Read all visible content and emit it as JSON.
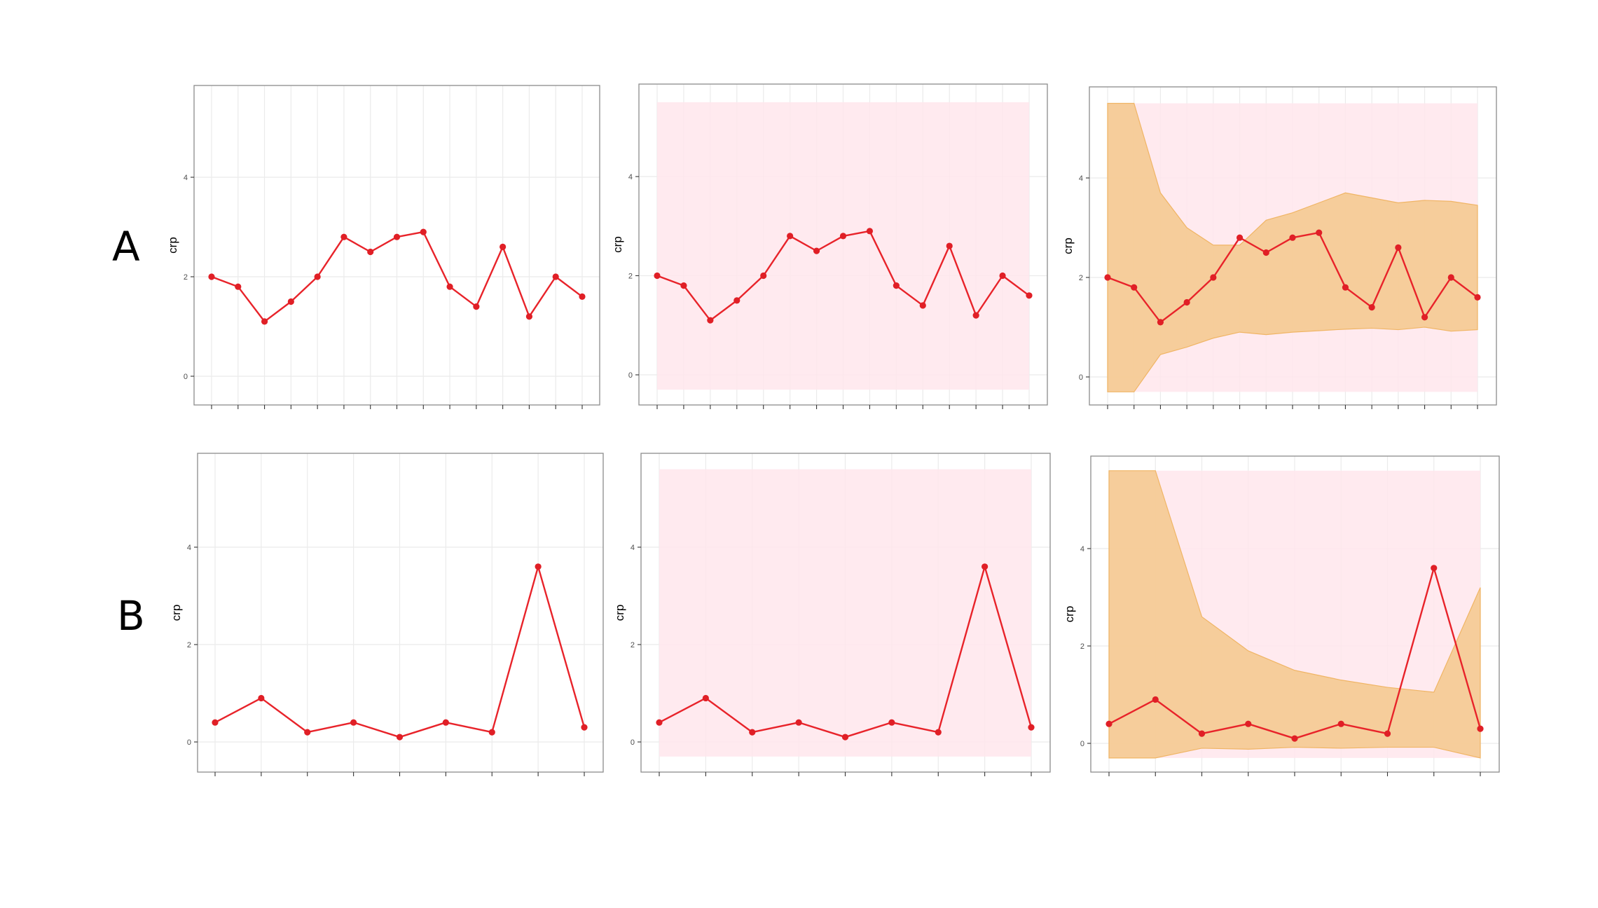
{
  "row_labels": [
    "A",
    "B"
  ],
  "colors": {
    "line": "#e8232a",
    "point": "#e01f26",
    "reference_band": "#ffe6ec",
    "prediction_band": "#f5c88c",
    "prediction_band_edge": "#f0b565",
    "grid": "#ebebeb",
    "frame": "#8c8c8c"
  },
  "chart_data": [
    {
      "type": "line",
      "row": "A",
      "panel": 1,
      "ylabel": "crp",
      "ylim": [
        -0.6,
        5.6
      ],
      "yticks": [
        "0",
        "2",
        "4"
      ],
      "grid": true,
      "x_ticks_labeled": false,
      "x": [
        1,
        2,
        3,
        4,
        5,
        6,
        7,
        8,
        9,
        10,
        11,
        12,
        13,
        14,
        15
      ],
      "values": [
        2.0,
        1.8,
        1.1,
        1.5,
        2.0,
        2.8,
        2.5,
        2.8,
        2.9,
        1.8,
        1.4,
        2.6,
        1.2,
        2.0,
        1.6
      ]
    },
    {
      "type": "line",
      "row": "A",
      "panel": 2,
      "ylabel": "crp",
      "ylim": [
        -0.6,
        5.6
      ],
      "yticks": [
        "0",
        "2",
        "4"
      ],
      "grid": true,
      "x_ticks_labeled": false,
      "x": [
        1,
        2,
        3,
        4,
        5,
        6,
        7,
        8,
        9,
        10,
        11,
        12,
        13,
        14,
        15
      ],
      "values": [
        2.0,
        1.8,
        1.1,
        1.5,
        2.0,
        2.8,
        2.5,
        2.8,
        2.9,
        1.8,
        1.4,
        2.6,
        1.2,
        2.0,
        1.6
      ],
      "reference_band": [
        -0.3,
        5.5
      ]
    },
    {
      "type": "line",
      "row": "A",
      "panel": 3,
      "ylabel": "crp",
      "ylim": [
        -0.6,
        5.6
      ],
      "yticks": [
        "0",
        "2",
        "4"
      ],
      "grid": true,
      "x_ticks_labeled": false,
      "x": [
        1,
        2,
        3,
        4,
        5,
        6,
        7,
        8,
        9,
        10,
        11,
        12,
        13,
        14,
        15
      ],
      "values": [
        2.0,
        1.8,
        1.1,
        1.5,
        2.0,
        2.8,
        2.5,
        2.8,
        2.9,
        1.8,
        1.4,
        2.6,
        1.2,
        2.0,
        1.6
      ],
      "reference_band": [
        -0.3,
        5.5
      ],
      "prediction_band": {
        "lower": [
          -0.3,
          -0.3,
          0.45,
          0.6,
          0.78,
          0.9,
          0.85,
          0.9,
          0.93,
          0.96,
          0.98,
          0.95,
          1.0,
          0.92,
          0.95
        ],
        "upper": [
          5.5,
          5.5,
          3.7,
          3.0,
          2.65,
          2.65,
          3.15,
          3.3,
          3.5,
          3.7,
          3.6,
          3.5,
          3.55,
          3.53,
          3.45
        ]
      }
    },
    {
      "type": "line",
      "row": "B",
      "panel": 1,
      "ylabel": "crp",
      "ylim": [
        -0.6,
        5.6
      ],
      "yticks": [
        "0",
        "2",
        "4"
      ],
      "grid": true,
      "x_ticks_labeled": false,
      "x": [
        1,
        2,
        3,
        4,
        5,
        6,
        7,
        8,
        9
      ],
      "values": [
        0.4,
        0.9,
        0.2,
        0.4,
        0.1,
        0.4,
        0.2,
        3.6,
        0.3
      ]
    },
    {
      "type": "line",
      "row": "B",
      "panel": 2,
      "ylabel": "crp",
      "ylim": [
        -0.6,
        5.6
      ],
      "yticks": [
        "0",
        "2",
        "4"
      ],
      "grid": true,
      "x_ticks_labeled": false,
      "x": [
        1,
        2,
        3,
        4,
        5,
        6,
        7,
        8,
        9
      ],
      "values": [
        0.4,
        0.9,
        0.2,
        0.4,
        0.1,
        0.4,
        0.2,
        3.6,
        0.3
      ],
      "reference_band": [
        -0.3,
        5.6
      ]
    },
    {
      "type": "line",
      "row": "B",
      "panel": 3,
      "ylabel": "crp",
      "ylim": [
        -0.6,
        5.6
      ],
      "yticks": [
        "0",
        "2",
        "4"
      ],
      "grid": true,
      "x_ticks_labeled": false,
      "x": [
        1,
        2,
        3,
        4,
        5,
        6,
        7,
        8,
        9
      ],
      "values": [
        0.4,
        0.9,
        0.2,
        0.4,
        0.1,
        0.4,
        0.2,
        3.6,
        0.3
      ],
      "reference_band": [
        -0.3,
        5.6
      ],
      "prediction_band": {
        "lower": [
          -0.3,
          -0.3,
          -0.1,
          -0.12,
          -0.08,
          -0.1,
          -0.08,
          -0.08,
          -0.3
        ],
        "upper": [
          5.6,
          5.6,
          2.6,
          1.9,
          1.5,
          1.3,
          1.15,
          1.05,
          3.2
        ]
      }
    }
  ]
}
